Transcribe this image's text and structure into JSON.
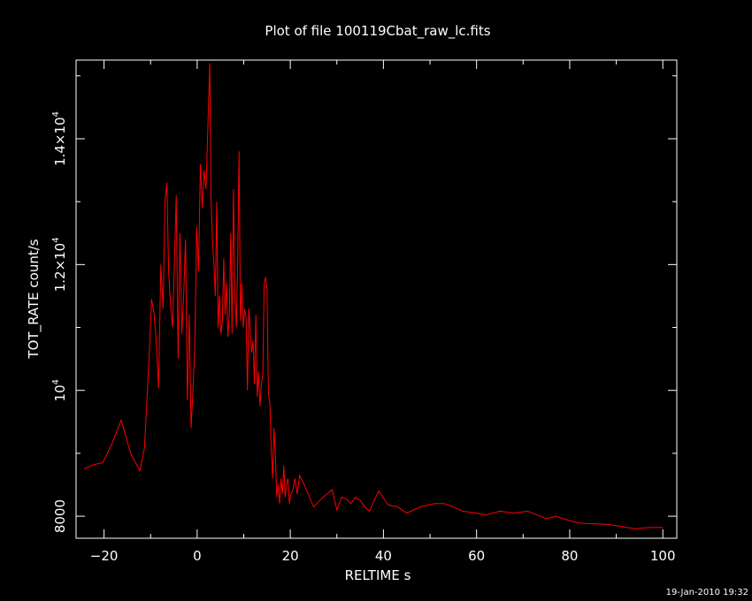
{
  "title": "Plot of file 100119Cbat_raw_lc.fits",
  "timestamp": "19-Jan-2010 19:32",
  "colors": {
    "background": "#000000",
    "axes": "#ffffff",
    "series": "#ff0000"
  },
  "chart_data": {
    "type": "line",
    "title": "Plot of file 100119Cbat_raw_lc.fits",
    "xlabel": "RELTIME   s",
    "ylabel": "TOT_RATE   count/s",
    "xlim": [
      -26,
      103
    ],
    "ylim": [
      7650,
      15250
    ],
    "grid": false,
    "legend": "none",
    "x_ticks": [
      {
        "value": -20,
        "label": "−20"
      },
      {
        "value": 0,
        "label": "0"
      },
      {
        "value": 20,
        "label": "20"
      },
      {
        "value": 40,
        "label": "40"
      },
      {
        "value": 60,
        "label": "60"
      },
      {
        "value": 80,
        "label": "80"
      },
      {
        "value": 100,
        "label": "100"
      }
    ],
    "y_ticks": [
      {
        "value": 8000,
        "mantissa": "8000",
        "exp": ""
      },
      {
        "value": 10000,
        "mantissa": "10",
        "exp": "4"
      },
      {
        "value": 12000,
        "mantissa": "1.2×10",
        "exp": "4"
      },
      {
        "value": 14000,
        "mantissa": "1.4×10",
        "exp": "4"
      }
    ],
    "series": [
      {
        "color": "#ff0000",
        "x": [
          -24.3,
          -22.3,
          -20.3,
          -18.3,
          -16.3,
          -14.3,
          -12.3,
          -11.3,
          -10.3,
          -9.8,
          -9.3,
          -8.8,
          -8.3,
          -7.8,
          -7.3,
          -6.9,
          -6.5,
          -6.1,
          -5.7,
          -5.3,
          -4.9,
          -4.5,
          -4.1,
          -3.7,
          -3.3,
          -2.9,
          -2.5,
          -2.1,
          -1.7,
          -1.3,
          -0.9,
          -0.5,
          -0.1,
          0.3,
          0.7,
          1.1,
          1.5,
          1.9,
          2.3,
          2.7,
          3.0,
          3.3,
          3.6,
          3.9,
          4.2,
          4.5,
          4.8,
          5.1,
          5.4,
          5.7,
          6.0,
          6.3,
          6.6,
          6.9,
          7.2,
          7.5,
          7.8,
          8.1,
          8.4,
          8.7,
          9.0,
          9.3,
          9.6,
          9.9,
          10.2,
          10.5,
          10.8,
          11.1,
          11.4,
          11.7,
          12.0,
          12.3,
          12.6,
          12.9,
          13.2,
          13.5,
          13.8,
          14.1,
          14.4,
          14.7,
          15.0,
          15.3,
          15.6,
          15.9,
          16.2,
          16.5,
          16.8,
          17.1,
          17.4,
          17.7,
          18.0,
          18.3,
          18.6,
          18.9,
          19.2,
          19.5,
          19.8,
          20.1,
          20.5,
          21.0,
          21.5,
          22.0,
          23.0,
          25.0,
          27.0,
          29.0,
          30.0,
          31.0,
          32.0,
          33.0,
          34.0,
          35.0,
          36.0,
          37.0,
          38.0,
          39.0,
          41.0,
          43.0,
          45.0,
          48.0,
          51.0,
          53.0,
          55.0,
          57.0,
          60.0,
          62.0,
          65.0,
          68.0,
          71.0,
          73.0,
          75.0,
          77.0,
          80.0,
          82.0,
          85.0,
          88.0,
          91.0,
          94.0,
          97.0,
          100.0
        ],
        "values": [
          8750,
          8820,
          8850,
          9150,
          9530,
          9000,
          8720,
          9100,
          10550,
          11450,
          11250,
          10800,
          10030,
          12000,
          11300,
          13000,
          13300,
          11850,
          11350,
          11000,
          12000,
          13100,
          10500,
          12500,
          10900,
          11500,
          12400,
          9850,
          11200,
          9400,
          10000,
          10700,
          12600,
          11900,
          13600,
          12900,
          13500,
          13200,
          14200,
          15200,
          13000,
          12400,
          12000,
          11500,
          13000,
          11000,
          11500,
          10900,
          11100,
          12100,
          11200,
          11700,
          10850,
          11200,
          12500,
          10900,
          13200,
          11500,
          11000,
          12000,
          13800,
          11100,
          11700,
          11000,
          11300,
          11150,
          10000,
          11300,
          10900,
          10600,
          10800,
          10100,
          11200,
          9900,
          10300,
          9750,
          10100,
          10250,
          11700,
          11800,
          11600,
          9950,
          9800,
          9100,
          8600,
          9400,
          8950,
          8300,
          8500,
          8200,
          8600,
          8350,
          8800,
          8300,
          8500,
          8600,
          8200,
          8350,
          8400,
          8600,
          8350,
          8650,
          8500,
          8150,
          8300,
          8420,
          8100,
          8300,
          8280,
          8200,
          8300,
          8250,
          8150,
          8080,
          8250,
          8400,
          8180,
          8150,
          8050,
          8150,
          8200,
          8200,
          8150,
          8080,
          8050,
          8020,
          8080,
          8050,
          8080,
          8020,
          7960,
          8000,
          7930,
          7890,
          7880,
          7870,
          7840,
          7800,
          7820,
          7820
        ]
      }
    ]
  }
}
